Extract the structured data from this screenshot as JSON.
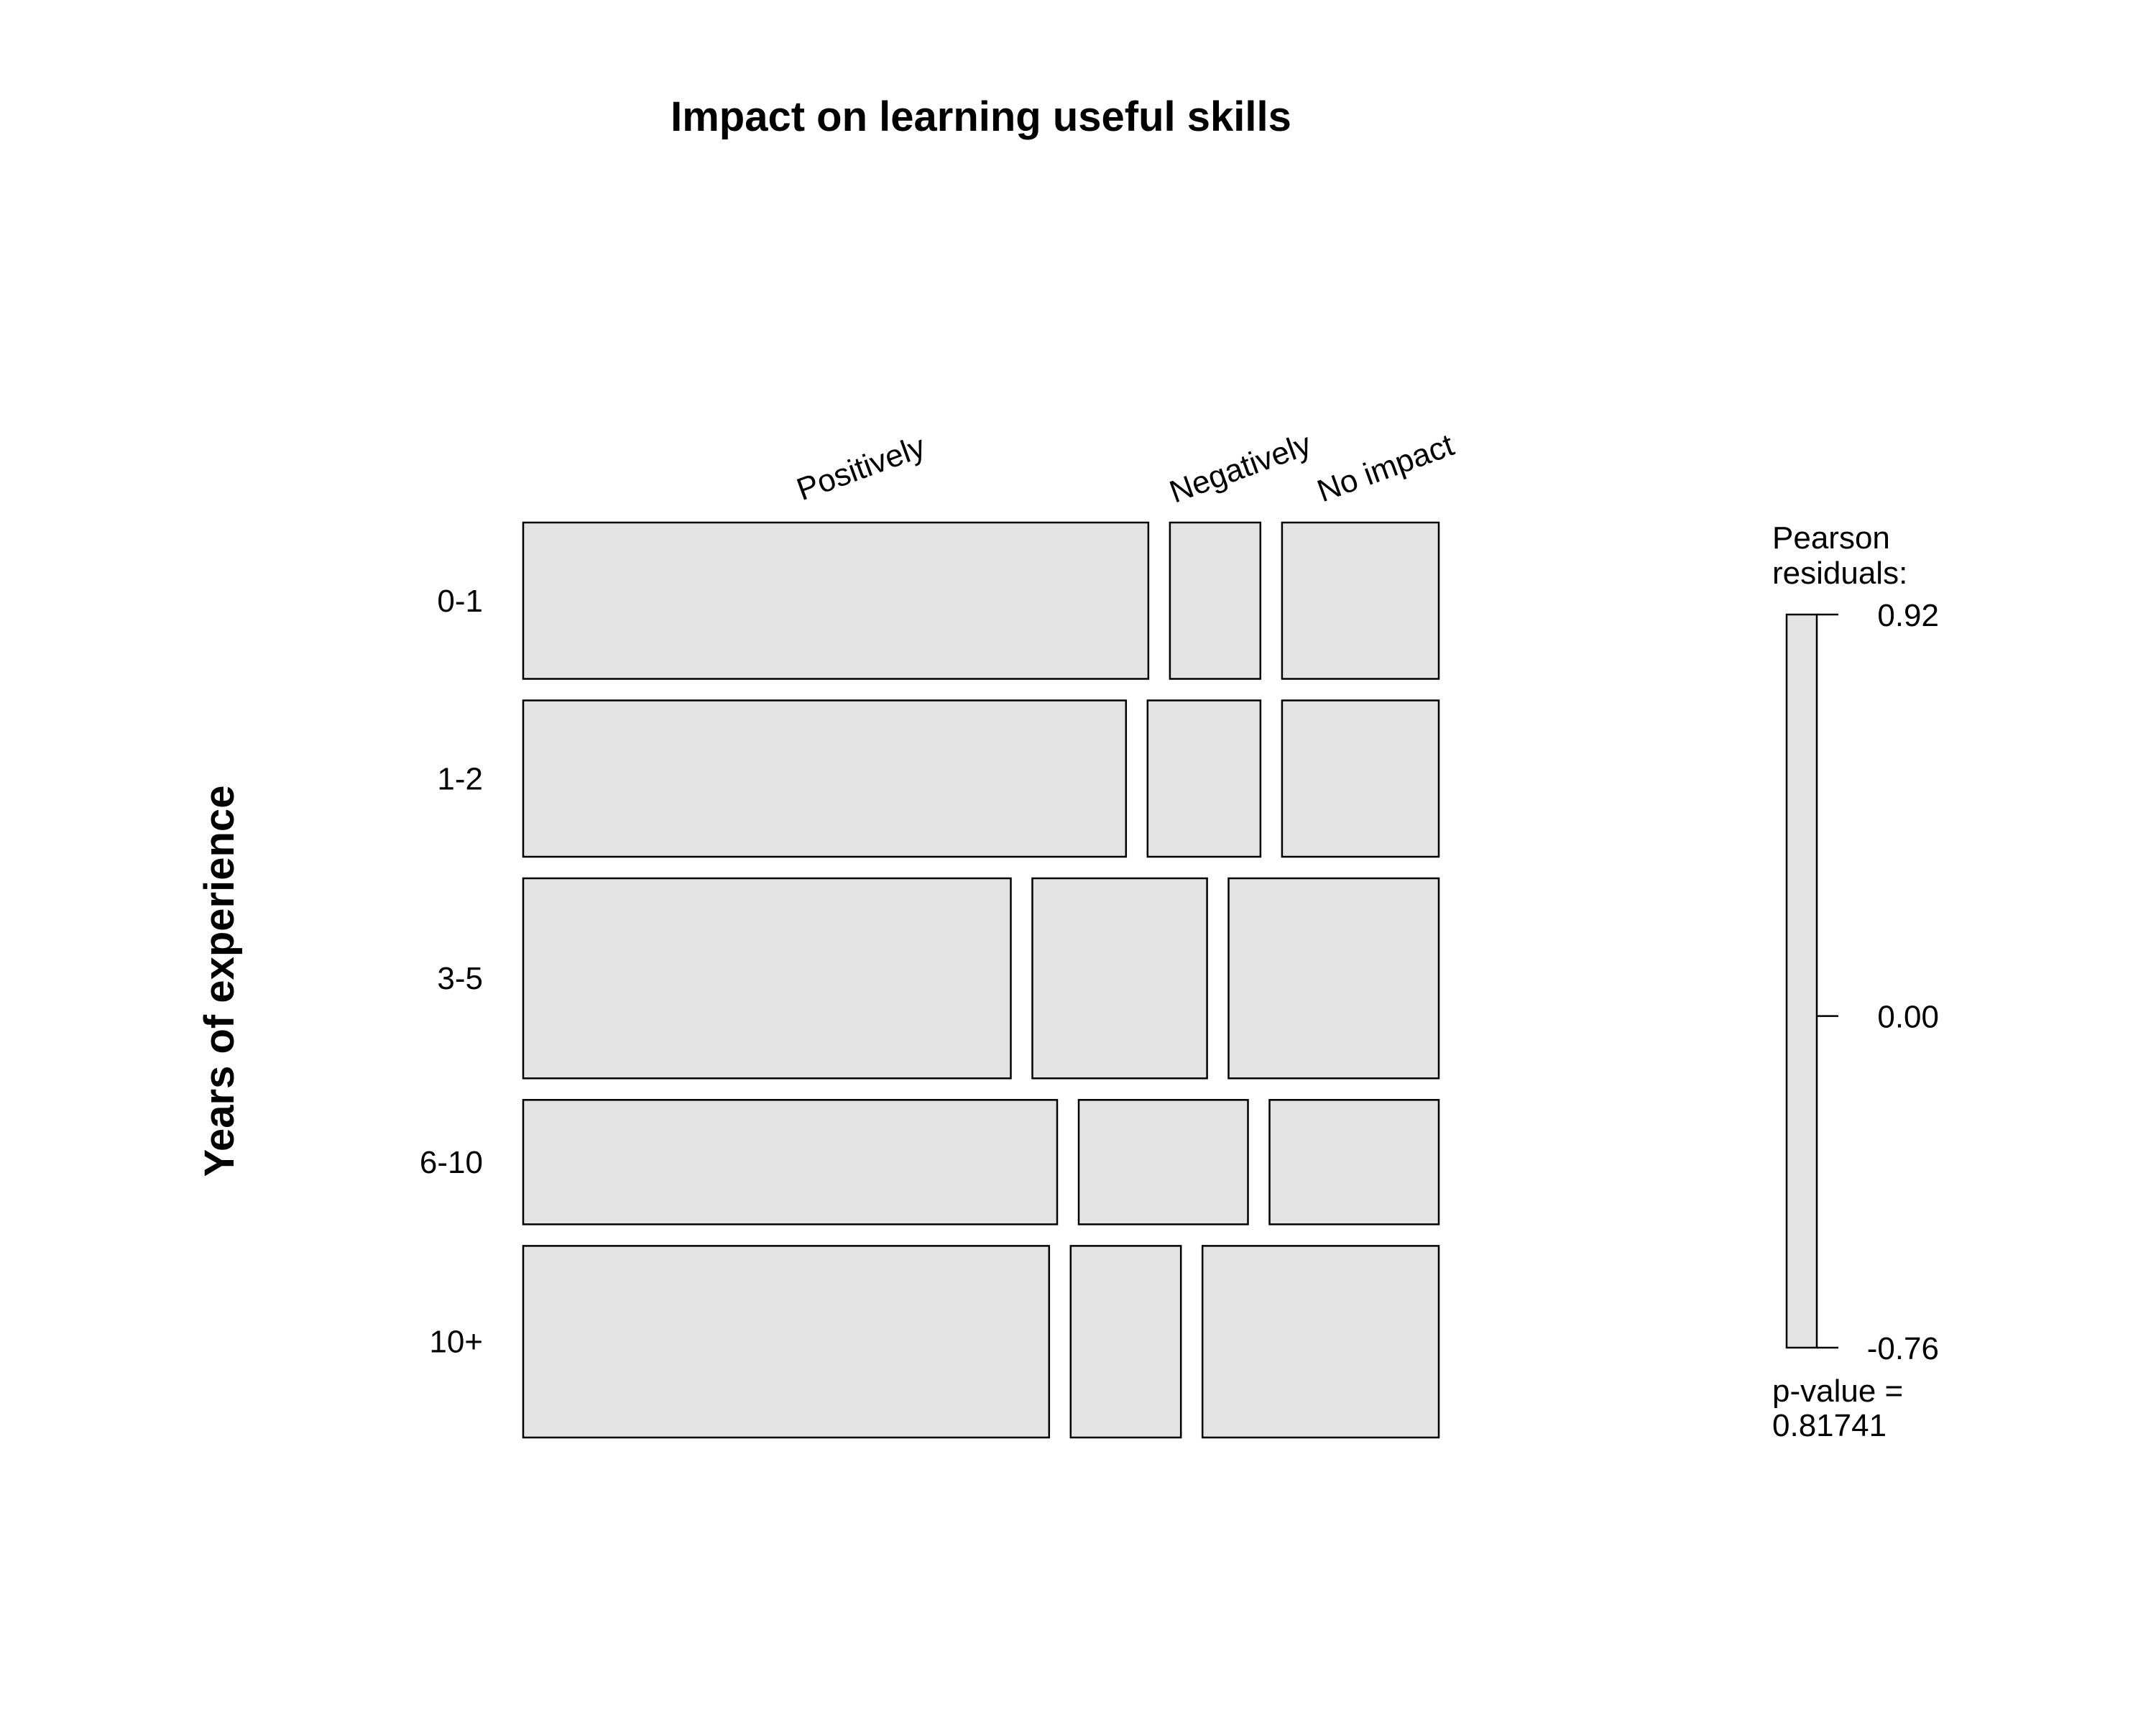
{
  "chart_data": {
    "type": "mosaic",
    "title": "Impact on learning useful skills",
    "ylabel": "Years of experience",
    "columns": [
      "Positively",
      "Negatively",
      "No impact"
    ],
    "rows": [
      "0-1",
      "1-2",
      "3-5",
      "6-10",
      "10+"
    ],
    "row_proportions": [
      0.186,
      0.186,
      0.238,
      0.148,
      0.228
    ],
    "cell_proportions": [
      [
        0.67,
        0.097,
        0.168
      ],
      [
        0.646,
        0.121,
        0.168
      ],
      [
        0.522,
        0.187,
        0.225
      ],
      [
        0.571,
        0.181,
        0.181
      ],
      [
        0.563,
        0.118,
        0.253
      ]
    ],
    "fill_color": "#e3e3e3",
    "legend": {
      "title_line1": "Pearson",
      "title_line2": "residuals:",
      "ticks": [
        "0.92",
        "0.00",
        "-0.76"
      ],
      "tick_values": [
        0.92,
        0.0,
        -0.76
      ],
      "pvalue_line1": "p-value =",
      "pvalue_line2": "0.81741",
      "placement": "right"
    }
  }
}
